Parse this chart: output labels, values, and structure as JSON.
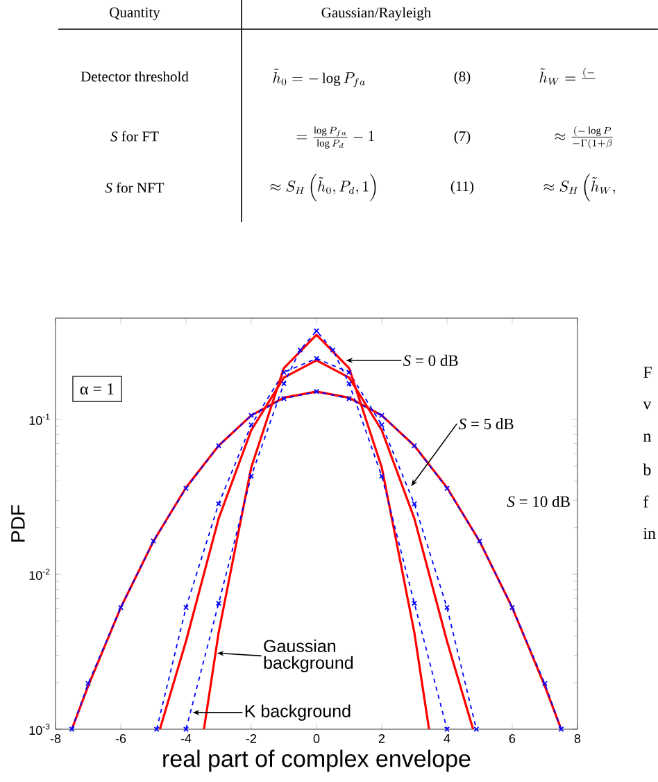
{
  "chart_data": {
    "type": "line",
    "xlabel": "real part of complex envelope",
    "ylabel": "PDF",
    "log": true,
    "xlim": [
      -8,
      8
    ],
    "xticks": [
      -8,
      -6,
      -4,
      -2,
      0,
      2,
      4,
      6,
      8
    ],
    "ylim": [
      0.001,
      0.45
    ],
    "yticks": [
      {
        "value": 0.001,
        "label": "10$^{-3}$"
      },
      {
        "value": 0.01,
        "label": "10$^{-2}$"
      },
      {
        "value": 0.1,
        "label": "10$^{-1}$"
      }
    ],
    "series": [
      {
        "color": "#ff0000",
        "line_style": "solid",
        "marker": "none",
        "x": [
          -7.5,
          -7,
          -6,
          -5,
          -4,
          -3,
          -2,
          -1,
          0,
          1,
          2,
          3,
          4,
          5,
          6,
          7,
          7.5
        ],
        "values": [
          0.001,
          0.0019,
          0.0061,
          0.0163,
          0.0363,
          0.0676,
          0.106,
          0.138,
          0.151,
          0.138,
          0.106,
          0.0676,
          0.0363,
          0.0163,
          0.0061,
          0.0019,
          0.001
        ]
      },
      {
        "color": "#0000ff",
        "line_style": "dashed",
        "marker": "cross",
        "x": [
          -7.5,
          -7,
          -6,
          -5,
          -4,
          -3,
          -2,
          -1,
          0,
          1,
          2,
          3,
          4,
          5,
          6,
          7,
          7.5
        ],
        "values": [
          0.001,
          0.00197,
          0.0061,
          0.0164,
          0.0358,
          0.0676,
          0.106,
          0.136,
          0.151,
          0.136,
          0.106,
          0.0676,
          0.0358,
          0.0164,
          0.0061,
          0.00197,
          0.001
        ]
      },
      {
        "color": "#ff0000",
        "line_style": "solid",
        "marker": "none",
        "x": [
          -4.8,
          -4,
          -3,
          -2,
          -1,
          0,
          1,
          2,
          3,
          4,
          4.8
        ],
        "values": [
          0.001,
          0.0037,
          0.0229,
          0.085,
          0.186,
          0.24,
          0.186,
          0.085,
          0.0229,
          0.0037,
          0.001
        ]
      },
      {
        "color": "#0000ff",
        "line_style": "dashed",
        "marker": "cross",
        "x": [
          -4.9,
          -4,
          -3,
          -2,
          -1,
          0,
          1,
          2,
          3,
          4,
          4.9
        ],
        "values": [
          0.001,
          0.0061,
          0.0285,
          0.092,
          0.201,
          0.247,
          0.201,
          0.092,
          0.0285,
          0.0061,
          0.001
        ]
      },
      {
        "color": "#ff0000",
        "line_style": "solid",
        "marker": "none",
        "x": [
          -3.45,
          -3,
          -2,
          -1,
          0,
          1,
          2,
          3,
          3.45
        ],
        "values": [
          0.001,
          0.0042,
          0.049,
          0.214,
          0.351,
          0.214,
          0.049,
          0.0042,
          0.001
        ]
      },
      {
        "color": "#0000ff",
        "line_style": "dashed",
        "marker": "cross",
        "x": [
          -4,
          -3,
          -2,
          -1,
          -0.5,
          0,
          0.5,
          1,
          2,
          3,
          4
        ],
        "values": [
          0.001,
          0.0065,
          0.043,
          0.17,
          0.28,
          0.372,
          0.28,
          0.17,
          0.043,
          0.0065,
          0.001
        ]
      }
    ],
    "annotations": [
      {
        "text": "*S* = 0 dB",
        "x": 0.9,
        "y": 0.24
      },
      {
        "text": "*S* = 5 dB",
        "x": 2.9,
        "y": 0.037
      },
      "*S* = 10 dB",
      {
        "text": "Gaussian background",
        "x": -3.05,
        "y": 0.0031
      },
      {
        "text": "K background",
        "x": -3.8,
        "y": 0.00128
      },
      "α = 1",
      "Quantity",
      "Gaussian/Rayleigh",
      "Detector threshold",
      "*S* for FT",
      "*S* for NFT",
      "\\tilde{h}_0 = -\\log P_{fa}",
      "(8)",
      "= \\frac{\\log P_{fa}}{\\log P_d} - 1",
      "(7)",
      "\\approx S_H\\left(\\tilde{h}_0, P_d, 1\\right)",
      "(11)",
      "\\tilde{h}_W = \\frac{(-}{}",
      "\\approx \\frac{(-\\log P}{-\\Gamma(1+\\beta}",
      "\\approx S_H\\left(\\tilde{h}_W,\\right.",
      "F",
      "v",
      "n",
      "b",
      "f",
      "in"
    ]
  }
}
